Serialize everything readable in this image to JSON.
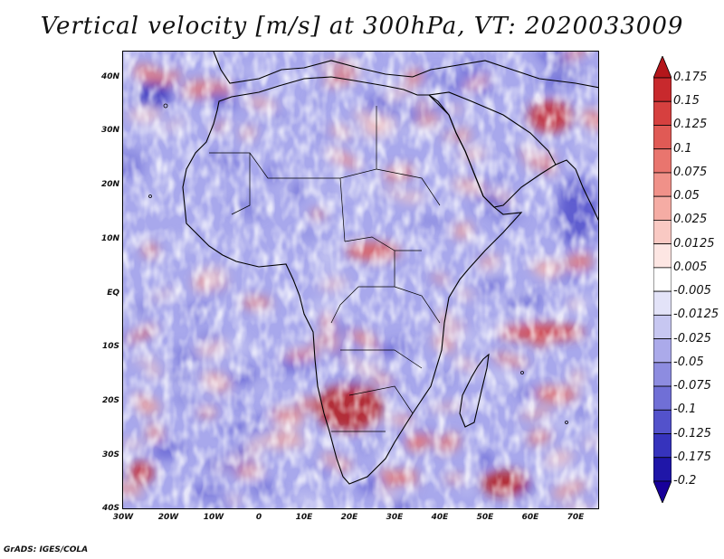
{
  "title": "Vertical velocity [m/s] at 300hPa, VT: 2020033009",
  "credit": "GrADS: IGES/COLA",
  "map": {
    "projection": "latlon",
    "lon_range": [
      -30,
      75
    ],
    "lat_range": [
      -40,
      45
    ],
    "lat_labels": [
      "40N",
      "30N",
      "20N",
      "10N",
      "EQ",
      "10S",
      "20S",
      "30S",
      "40S"
    ],
    "lat_values": [
      40,
      30,
      20,
      10,
      0,
      -10,
      -20,
      -30,
      -40
    ],
    "lon_labels": [
      "30W",
      "20W",
      "10W",
      "0",
      "10E",
      "20E",
      "30E",
      "40E",
      "50E",
      "60E",
      "70E"
    ],
    "lon_values": [
      -30,
      -20,
      -10,
      0,
      10,
      20,
      30,
      40,
      50,
      60,
      70
    ]
  },
  "colorbar": {
    "levels": [
      "0.175",
      "0.15",
      "0.125",
      "0.1",
      "0.075",
      "0.05",
      "0.025",
      "0.0125",
      "0.005",
      "-0.005",
      "-0.0125",
      "-0.025",
      "-0.05",
      "-0.075",
      "-0.1",
      "-0.125",
      "-0.175",
      "-0.2"
    ],
    "colors": [
      "#b4161b",
      "#c8292d",
      "#d6403f",
      "#e05a55",
      "#e9756e",
      "#f09189",
      "#f5aca4",
      "#f9c9c3",
      "#fde6e3",
      "#ffffff",
      "#e3e3f8",
      "#c7c7f1",
      "#abaaea",
      "#8d8ce0",
      "#706fd6",
      "#5352cb",
      "#3633bd",
      "#1f16a8",
      "#18009a"
    ]
  },
  "chart_data": {
    "type": "heatmap",
    "title": "Vertical velocity [m/s] at 300hPa, VT: 2020033009",
    "variable": "Vertical velocity",
    "units": "m/s",
    "level": "300hPa",
    "valid_time": "2020033009",
    "x_range": [
      -30,
      75
    ],
    "y_range": [
      -40,
      45
    ],
    "color_levels": [
      0.175,
      0.15,
      0.125,
      0.1,
      0.075,
      0.05,
      0.025,
      0.0125,
      0.005,
      -0.005,
      -0.0125,
      -0.025,
      -0.05,
      -0.075,
      -0.1,
      -0.125,
      -0.175,
      -0.2
    ],
    "notable_features": [
      {
        "name": "Strong ascent over Southern Africa",
        "lon": 20,
        "lat": -20,
        "sign": "positive"
      },
      {
        "name": "Ascent band SE of Madagascar",
        "lon": 55,
        "lat": -35,
        "sign": "positive"
      },
      {
        "name": "Ascent band east Indian Ocean",
        "lon": 62,
        "lat": -7,
        "sign": "positive"
      },
      {
        "name": "Ascent over Iran/Afghanistan",
        "lon": 65,
        "lat": 33,
        "sign": "positive"
      },
      {
        "name": "Descent NW of Canaries",
        "lon": -23,
        "lat": 38,
        "sign": "negative"
      },
      {
        "name": "Ascent south Atlantic",
        "lon": -26,
        "lat": -35,
        "sign": "positive"
      }
    ]
  }
}
